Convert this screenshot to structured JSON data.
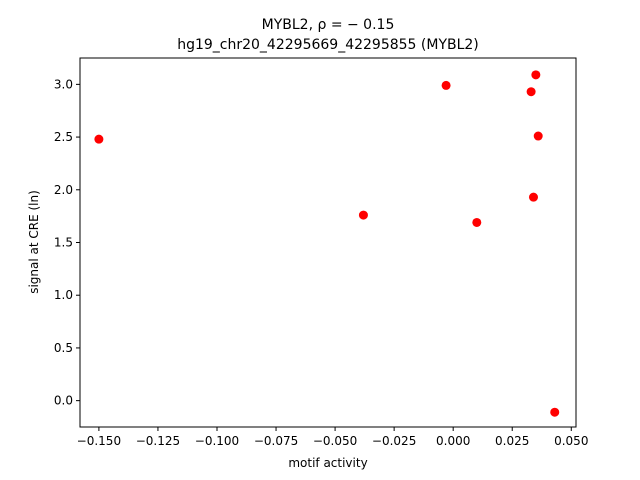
{
  "chart_data": {
    "type": "scatter",
    "title": "MYBL2, ρ = − 0.15",
    "subtitle": "hg19_chr20_42295669_42295855 (MYBL2)",
    "xlabel": "motif activity",
    "ylabel": "signal at CRE (ln)",
    "xlim": [
      -0.158,
      0.052
    ],
    "ylim": [
      -0.25,
      3.25
    ],
    "xticks": [
      -0.15,
      -0.125,
      -0.1,
      -0.075,
      -0.05,
      -0.025,
      0.0,
      0.025,
      0.05
    ],
    "xtick_labels": [
      "−0.150",
      "−0.125",
      "−0.100",
      "−0.075",
      "−0.050",
      "−0.025",
      "0.000",
      "0.025",
      "0.050"
    ],
    "yticks": [
      0.0,
      0.5,
      1.0,
      1.5,
      2.0,
      2.5,
      3.0
    ],
    "ytick_labels": [
      "0.0",
      "0.5",
      "1.0",
      "1.5",
      "2.0",
      "2.5",
      "3.0"
    ],
    "grid": false,
    "marker_color": "#ff0000",
    "points": [
      {
        "x": -0.15,
        "y": 2.48
      },
      {
        "x": -0.038,
        "y": 1.76
      },
      {
        "x": -0.003,
        "y": 2.99
      },
      {
        "x": 0.01,
        "y": 1.69
      },
      {
        "x": 0.033,
        "y": 2.93
      },
      {
        "x": 0.034,
        "y": 1.93
      },
      {
        "x": 0.035,
        "y": 3.09
      },
      {
        "x": 0.036,
        "y": 2.51
      },
      {
        "x": 0.043,
        "y": -0.11
      }
    ]
  }
}
